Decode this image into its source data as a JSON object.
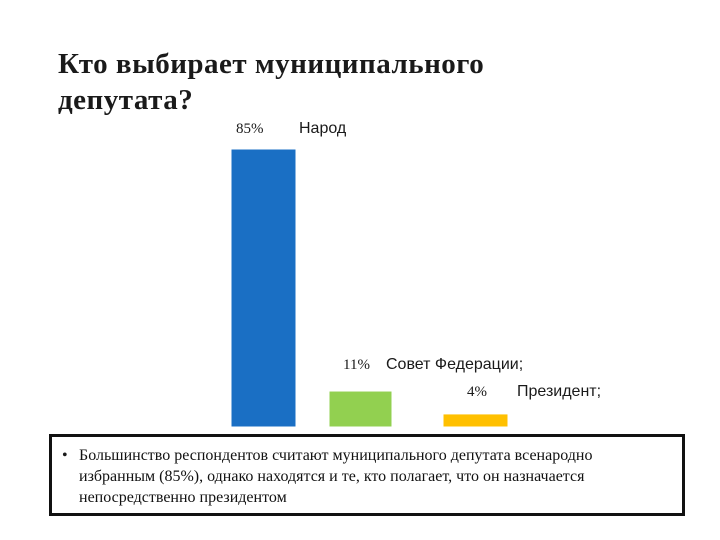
{
  "slide": {
    "title": "Кто выбирает муниципального\nдепутата?",
    "note_bullet": "•",
    "note": "Большинство респондентов считают муниципального депутата всенародно избранным (85%), однако находятся и те, кто полагает, что он назначается непосредственно президентом"
  },
  "chart_data": {
    "type": "bar",
    "categories": [
      "Народ",
      "Совет Федерации;",
      "Президент;"
    ],
    "values": [
      85,
      11,
      4
    ],
    "value_labels": [
      "85%",
      "11%",
      "4%"
    ],
    "colors": [
      "#1a6fc4",
      "#92d050",
      "#ffc000"
    ],
    "title": "",
    "xlabel": "",
    "ylabel": "",
    "ylim": [
      0,
      85
    ],
    "grid": false,
    "legend": "none"
  }
}
